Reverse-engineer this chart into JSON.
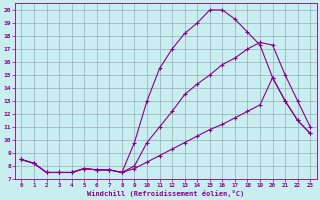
{
  "xlabel": "Windchill (Refroidissement éolien,°C)",
  "bg_color": "#c8eef0",
  "line_color": "#880088",
  "grid_color": "#99aabb",
  "xlim": [
    -0.5,
    23.5
  ],
  "ylim": [
    7,
    20.5
  ],
  "xticks": [
    0,
    1,
    2,
    3,
    4,
    5,
    6,
    7,
    8,
    9,
    10,
    11,
    12,
    13,
    14,
    15,
    16,
    17,
    18,
    19,
    20,
    21,
    22,
    23
  ],
  "yticks": [
    7,
    8,
    9,
    10,
    11,
    12,
    13,
    14,
    15,
    16,
    17,
    18,
    19,
    20
  ],
  "line1_x": [
    0,
    1,
    2,
    3,
    4,
    5,
    6,
    7,
    8,
    9,
    10,
    11,
    12,
    13,
    14,
    15,
    16,
    17,
    18,
    19,
    20,
    21,
    22,
    23
  ],
  "line1_y": [
    8.5,
    8.2,
    7.5,
    7.5,
    7.5,
    7.8,
    7.7,
    7.7,
    7.5,
    9.8,
    13.0,
    15.5,
    17.0,
    18.2,
    19.0,
    20.0,
    20.0,
    19.3,
    18.3,
    17.3,
    14.8,
    13.0,
    11.5,
    10.5
  ],
  "line2_x": [
    0,
    1,
    2,
    3,
    4,
    5,
    6,
    7,
    8,
    9,
    10,
    11,
    12,
    13,
    14,
    15,
    16,
    17,
    18,
    19,
    20,
    21,
    22,
    23
  ],
  "line2_y": [
    8.5,
    8.2,
    7.5,
    7.5,
    7.5,
    7.8,
    7.7,
    7.7,
    7.5,
    8.0,
    9.8,
    11.0,
    12.2,
    13.5,
    14.3,
    15.0,
    15.8,
    16.3,
    17.0,
    17.5,
    17.3,
    15.0,
    13.0,
    11.0
  ],
  "line3_x": [
    0,
    1,
    2,
    3,
    4,
    5,
    6,
    7,
    8,
    9,
    10,
    11,
    12,
    13,
    14,
    15,
    16,
    17,
    18,
    19,
    20,
    21,
    22,
    23
  ],
  "line3_y": [
    8.5,
    8.2,
    7.5,
    7.5,
    7.5,
    7.8,
    7.7,
    7.7,
    7.5,
    7.8,
    8.3,
    8.8,
    9.3,
    9.8,
    10.3,
    10.8,
    11.2,
    11.7,
    12.2,
    12.7,
    14.8,
    13.0,
    11.5,
    10.5
  ]
}
